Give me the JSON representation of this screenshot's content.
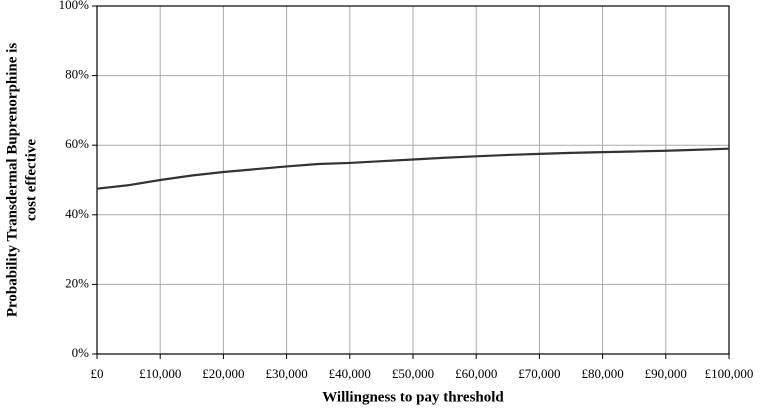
{
  "chart_data": {
    "type": "line",
    "xlabel": "Willingness  to pay threshold",
    "ylabel": [
      "Probability  Transdermal  Buprenorphine  is",
      "cost effective"
    ],
    "x": [
      0,
      5000,
      10000,
      15000,
      20000,
      25000,
      30000,
      35000,
      40000,
      45000,
      50000,
      55000,
      60000,
      65000,
      70000,
      75000,
      80000,
      85000,
      90000,
      95000,
      100000
    ],
    "series": [
      {
        "color": "#333333",
        "values": [
          47.5,
          48.5,
          50,
          51.3,
          52.3,
          53.1,
          53.9,
          54.6,
          54.9,
          55.4,
          55.9,
          56.4,
          56.8,
          57.2,
          57.5,
          57.8,
          58.0,
          58.2,
          58.4,
          58.7,
          59.0
        ]
      }
    ],
    "xlim": [
      0,
      100000
    ],
    "xticks": [
      {
        "value": 0,
        "label": "£0"
      },
      {
        "value": 10000,
        "label": "£10,000"
      },
      {
        "value": 20000,
        "label": "£20,000"
      },
      {
        "value": 30000,
        "label": "£30,000"
      },
      {
        "value": 40000,
        "label": "£40,000"
      },
      {
        "value": 50000,
        "label": "£50,000"
      },
      {
        "value": 60000,
        "label": "£60,000"
      },
      {
        "value": 70000,
        "label": "£70,000"
      },
      {
        "value": 80000,
        "label": "£80,000"
      },
      {
        "value": 90000,
        "label": "£90,000"
      },
      {
        "value": 100000,
        "label": "£100,000"
      }
    ],
    "ylim": [
      0,
      100
    ],
    "yticks": [
      {
        "value": 0,
        "label": "0%"
      },
      {
        "value": 20,
        "label": "20%"
      },
      {
        "value": 40,
        "label": "40%"
      },
      {
        "value": 60,
        "label": "60%"
      },
      {
        "value": 80,
        "label": "80%"
      },
      {
        "value": 100,
        "label": "100%"
      }
    ],
    "grid": true
  }
}
